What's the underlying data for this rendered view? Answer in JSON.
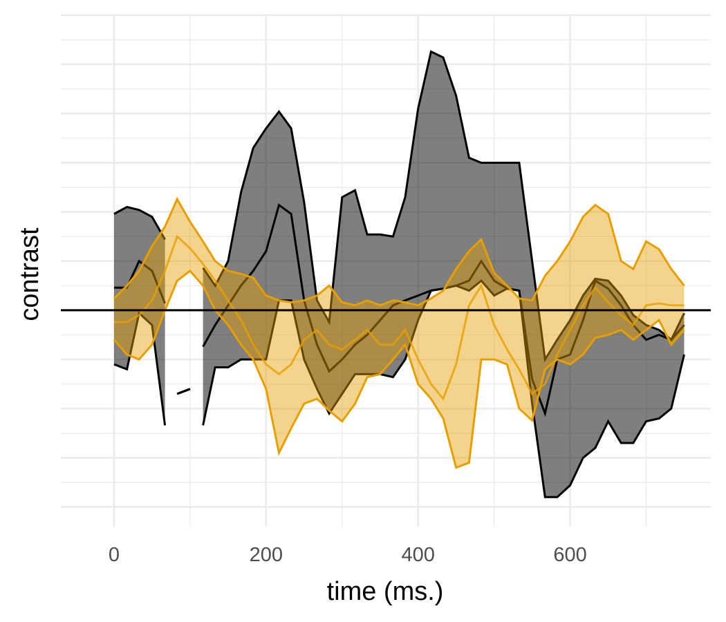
{
  "chart_data": {
    "type": "area",
    "xlabel": "time (ms.)",
    "ylabel": "contrast",
    "xlim": [
      -70,
      785
    ],
    "ylim": [
      -2.2,
      3.0
    ],
    "x_ticks": [
      0,
      200,
      400,
      600
    ],
    "x_tick_labels": [
      "0",
      "200",
      "400",
      "600"
    ],
    "y_tick_labels_shown": false,
    "grid": true,
    "reference_line_y": 0,
    "colors": {
      "dark_band": "#000000",
      "gold_band": "#E69F00",
      "grid": "#ebebeb"
    },
    "series": [
      {
        "style": "dark",
        "segments": [
          {
            "x": [
              0,
              17,
              33,
              50,
              67
            ],
            "mean": [
              0.23,
              0.23,
              0.5,
              0.4,
              0.07
            ],
            "upper": [
              0.98,
              1.05,
              1.02,
              0.95,
              0.72
            ],
            "lower": [
              -0.55,
              -0.6,
              -0.03,
              -0.15,
              -1.17
            ]
          },
          {
            "x": [
              83,
              100
            ],
            "mean": [
              -0.85,
              -0.8
            ],
            "upper": [
              -0.85,
              -0.8
            ],
            "lower": [
              -0.85,
              -0.8
            ]
          },
          {
            "x": [
              117,
              133,
              150,
              167,
              183,
              200,
              217,
              233,
              250,
              267,
              283,
              300,
              317,
              333,
              350,
              367,
              383,
              400,
              417,
              433,
              450,
              467,
              483,
              500,
              517,
              533,
              550,
              567,
              583,
              600,
              617,
              633,
              650,
              667,
              683,
              700,
              717,
              733,
              750
            ],
            "mean": [
              -0.37,
              -0.15,
              0.05,
              0.25,
              0.4,
              0.6,
              1.07,
              0.98,
              0.1,
              -0.35,
              -0.62,
              -0.5,
              -0.35,
              -0.25,
              -0.1,
              0.05,
              0.1,
              0.15,
              0.2,
              0.22,
              0.25,
              0.3,
              0.5,
              0.3,
              0.22,
              0.2,
              -0.7,
              -1.05,
              -0.5,
              -0.45,
              -0.1,
              0.3,
              0.22,
              0.05,
              -0.15,
              -0.3,
              -0.25,
              -0.3,
              -0.15
            ],
            "upper": [
              0.43,
              0.25,
              0.5,
              1.2,
              1.65,
              1.85,
              2.02,
              1.85,
              1.1,
              0.1,
              -0.12,
              1.15,
              1.22,
              0.77,
              0.77,
              0.75,
              1.15,
              2.05,
              2.63,
              2.57,
              2.18,
              1.55,
              1.5,
              1.5,
              1.5,
              1.5,
              0.5,
              -0.5,
              -0.3,
              -0.1,
              0.15,
              0.32,
              0.3,
              0.15,
              -0.05,
              -0.15,
              -0.2,
              -0.3,
              -0.03
            ],
            "lower": [
              -1.17,
              -0.58,
              -0.58,
              -0.5,
              -0.5,
              -0.5,
              0.1,
              0.1,
              -0.5,
              -0.8,
              -1.05,
              -0.85,
              -0.65,
              -0.65,
              -0.65,
              -0.68,
              -0.5,
              -0.1,
              0.2,
              0.22,
              0.25,
              0.2,
              0.3,
              0.15,
              0.22,
              0.2,
              -0.95,
              -1.9,
              -1.9,
              -1.78,
              -1.5,
              -1.4,
              -1.13,
              -1.35,
              -1.35,
              -1.13,
              -1.1,
              -1.0,
              -0.45
            ]
          }
        ]
      },
      {
        "style": "gold",
        "segments": [
          {
            "x": [
              0,
              17,
              33,
              50,
              67,
              83,
              100,
              117,
              133,
              150,
              167,
              183,
              200,
              217,
              233,
              250,
              267,
              283,
              300,
              317,
              333,
              350,
              367,
              383,
              400,
              417,
              433,
              450,
              467,
              483,
              500,
              517,
              533,
              550,
              567,
              583,
              600,
              617,
              633,
              650,
              667,
              683,
              700,
              717,
              733,
              750
            ],
            "mean": [
              -0.12,
              -0.12,
              -0.05,
              0.1,
              0.4,
              0.75,
              0.63,
              0.47,
              0.3,
              0.1,
              -0.1,
              -0.35,
              -0.55,
              -0.65,
              -0.55,
              -0.3,
              -0.2,
              -0.35,
              -0.4,
              -0.3,
              -0.2,
              -0.35,
              -0.35,
              -0.2,
              -0.5,
              -0.75,
              -0.9,
              -0.55,
              0.05,
              0.25,
              -0.15,
              -0.4,
              -0.6,
              -0.85,
              -0.75,
              -0.45,
              -0.2,
              0.05,
              0.23,
              0.08,
              -0.05,
              -0.15,
              0.05,
              0.07,
              0.05,
              0.05
            ],
            "upper": [
              0.12,
              0.25,
              0.4,
              0.65,
              0.85,
              1.13,
              0.9,
              0.7,
              0.5,
              0.4,
              0.37,
              0.33,
              0.15,
              0.1,
              0.08,
              0.1,
              0.15,
              0.25,
              0.08,
              0.05,
              0.1,
              0.05,
              0.1,
              0.08,
              0.05,
              0.12,
              0.2,
              0.42,
              0.6,
              0.72,
              0.38,
              0.25,
              0.12,
              0.1,
              0.35,
              0.5,
              0.7,
              0.95,
              1.07,
              0.98,
              0.5,
              0.42,
              0.7,
              0.62,
              0.42,
              0.25
            ],
            "lower": [
              -0.3,
              -0.45,
              -0.5,
              -0.35,
              0.0,
              0.3,
              0.4,
              0.25,
              0.0,
              -0.15,
              -0.35,
              -0.5,
              -0.8,
              -1.45,
              -1.2,
              -0.95,
              -0.9,
              -1.02,
              -1.13,
              -0.95,
              -0.68,
              -0.65,
              -0.5,
              -0.35,
              -0.75,
              -0.9,
              -1.1,
              -1.6,
              -1.55,
              -0.5,
              -0.5,
              -0.55,
              -1.0,
              -1.12,
              -0.6,
              -0.5,
              -0.55,
              -0.45,
              -0.28,
              -0.25,
              -0.2,
              -0.3,
              -0.2,
              -0.1,
              -0.35,
              -0.2
            ]
          }
        ]
      }
    ]
  }
}
